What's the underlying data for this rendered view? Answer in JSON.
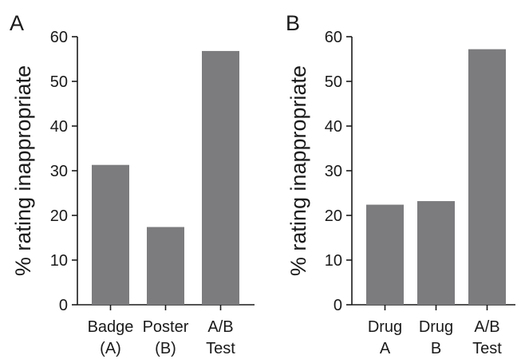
{
  "chart_data": [
    {
      "type": "bar",
      "panel": "A",
      "ylabel": "% rating inappropriate",
      "ylim": [
        0,
        60
      ],
      "yticks": [
        0,
        10,
        20,
        30,
        40,
        50,
        60
      ],
      "categories": [
        [
          "Badge",
          "(A)"
        ],
        [
          "Poster",
          "(B)"
        ],
        [
          "A/B",
          "Test"
        ]
      ],
      "values": [
        31.3,
        17.4,
        56.8
      ],
      "bar_color": "#7c7c7f",
      "grid": false
    },
    {
      "type": "bar",
      "panel": "B",
      "ylabel": "% rating inappropriate",
      "ylim": [
        0,
        60
      ],
      "yticks": [
        0,
        10,
        20,
        30,
        40,
        50,
        60
      ],
      "categories": [
        [
          "Drug",
          "A"
        ],
        [
          "Drug",
          "B"
        ],
        [
          "A/B",
          "Test"
        ]
      ],
      "values": [
        22.4,
        23.2,
        57.2
      ],
      "bar_color": "#7c7c7f",
      "grid": false
    }
  ]
}
